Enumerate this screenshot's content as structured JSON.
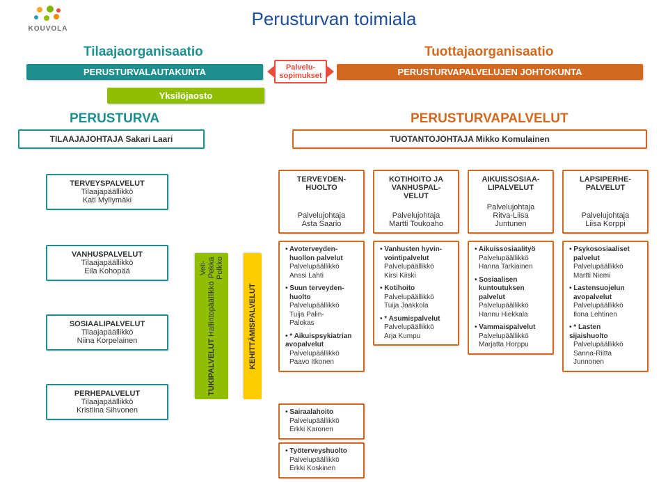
{
  "logo": {
    "text": "KOUVOLA",
    "dots": [
      "#f6a623",
      "#7bb800",
      "#e74c3c",
      "#2c9ab7",
      "#8fbf00",
      "#f08c00"
    ]
  },
  "title": "Perusturvan toimiala",
  "left_org": {
    "heading": "Tilaajaorganisaatio",
    "bar": "PERUSTURVALAUTAKUNTA"
  },
  "right_org": {
    "heading": "Tuottajaorganisaatio",
    "bar": "PERUSTURVAPALVELUJEN JOHTOKUNTA"
  },
  "callout": "Palvelu-\nsopimukset",
  "sub_bar": "Yksilöjaosto",
  "left_role": {
    "title": "PERUSTURVA",
    "role": "TILAAJAJOHTAJA Sakari Laari"
  },
  "right_role": {
    "title": "PERUSTURVAPALVELUT",
    "role": "TUOTANTOJOHTAJA Mikko Komulainen"
  },
  "teal_boxes": [
    {
      "title": "TERVEYSPALVELUT",
      "sub1": "Tilaajapäällikkö",
      "sub2": "Kati Myllymäki"
    },
    {
      "title": "VANHUSPALVELUT",
      "sub1": "Tilaajapäällikkö",
      "sub2": "Eila Kohopää"
    },
    {
      "title": "SOSIAALIPALVELUT",
      "sub1": "Tilaajapäällikkö",
      "sub2": "Niina Korpelainen"
    },
    {
      "title": "PERHEPALVELUT",
      "sub1": "Tilaajapäällikkö",
      "sub2": "Kristiina Sihvonen"
    }
  ],
  "vert_tuki": {
    "t": "TUKIPALVELUT",
    "s1": "Hallintopäällikkö",
    "s2": "Veli-Pekka Polkko"
  },
  "vert_keh": "KEHITTÄMISPALVELUT",
  "top_orange": [
    {
      "t": "TERVEYDEN-\nHUOLTO",
      "s1": "Palvelujohtaja",
      "s2": "Asta Saario"
    },
    {
      "t": "KOTIHOITO JA\nVANHUSPAL-\nVELUT",
      "s1": "Palvelujohtaja",
      "s2": "Martti Toukoaho"
    },
    {
      "t": "AIKUISSOSIAA-\nLIPALVELUT",
      "s1": "Palvelujohtaja",
      "s2": "Ritva-Liisa\nJuntunen"
    },
    {
      "t": "LAPSIPERHE-\nPALVELUT",
      "s1": "Palvelujohtaja",
      "s2": "Liisa Korppi"
    }
  ],
  "col0": [
    {
      "h": "Avoterveyden-\nhuollon palvelut",
      "l1": "Palvelupäällikkö",
      "l2": "Anssi Lahti"
    },
    {
      "h": "Suun terveyden-\nhuolto",
      "l1": "Palvelupäällikkö",
      "l2": "Tuija Palin-\nPalokas"
    },
    {
      "h": "* Aikuispsykiatrian\navopalvelut",
      "l1": "Palvelupäällikkö",
      "l2": "Paavo Itkonen",
      "star": true
    },
    {
      "h": "Sairaalahoito",
      "l1": "Palvelupäällikkö",
      "l2": "Erkki Karonen"
    },
    {
      "h": "Työterveyshuolto",
      "l1": "Palvelupäällikkö",
      "l2": "Erkki Koskinen"
    }
  ],
  "col1": [
    {
      "h": "Vanhusten hyvin-\nvointipalvelut",
      "l1": "Palvelupäällikkö",
      "l2": "Kirsi Kiiski"
    },
    {
      "h": "Kotihoito",
      "l1": "Palvelupäällikkö",
      "l2": "Tuija Jaakkola"
    },
    {
      "h": "* Asumispalvelut",
      "l1": "Palvelupäällikkö",
      "l2": "Arja Kumpu",
      "star": true
    }
  ],
  "col2": [
    {
      "h": "Aikuissosiaalityö",
      "l1": "Palvelupäällikkö",
      "l2": "Hanna Tarkiainen"
    },
    {
      "h": "Sosiaalisen\nkuntoutuksen\npalvelut",
      "l1": "Palvelupäällikkö",
      "l2": "Hannu Hiekkala"
    },
    {
      "h": "Vammaispalvelut",
      "l1": "Palvelupäällikkö",
      "l2": "Marjatta Horppu"
    }
  ],
  "col3": [
    {
      "h": "Psykososiaaliset\npalvelut",
      "l1": "Palvelupäällikkö",
      "l2": "Martti Niemi"
    },
    {
      "h": "Lastensuojelun\navopalvelut",
      "l1": "Palvelupäällikkö",
      "l2": "Ilona Lehtinen"
    },
    {
      "h": "* Lasten\nsijaishuolto",
      "l1": "Palvelupäällikkö",
      "l2": "Sanna-Riitta\nJunnonen",
      "star": true
    }
  ]
}
